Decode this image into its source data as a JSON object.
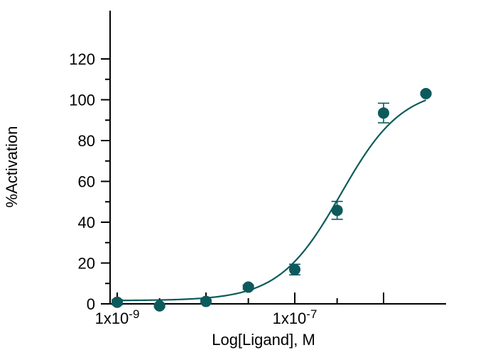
{
  "chart_data": {
    "type": "scatter",
    "xlabel": "Log[Ligand], M",
    "ylabel": "%Activation",
    "x_scale": "log10",
    "xlim": [
      1e-09,
      3e-06
    ],
    "ylim": [
      0,
      120
    ],
    "x_ticks": [
      {
        "value": 1e-09,
        "label": "1x10-9"
      },
      {
        "value": 1e-08,
        "label": ""
      },
      {
        "value": 1e-07,
        "label": "1x10-7"
      },
      {
        "value": 1e-06,
        "label": ""
      }
    ],
    "y_ticks": [
      0,
      20,
      40,
      60,
      80,
      100,
      120
    ],
    "y_minor_ticks": [
      10,
      30,
      50,
      70,
      90,
      110
    ],
    "x_minor_ticks": [
      3e-09,
      3e-08,
      3e-07
    ],
    "grid": false,
    "legend": "none",
    "color": "#0d5a5c",
    "points": [
      {
        "x": 1e-09,
        "y": 0.8,
        "err": 1.2
      },
      {
        "x": 3e-09,
        "y": -1.0,
        "err": 0.5
      },
      {
        "x": 1e-08,
        "y": 1.2,
        "err": 0.8
      },
      {
        "x": 3e-08,
        "y": 8.2,
        "err": 1.0
      },
      {
        "x": 1e-07,
        "y": 16.8,
        "err": 2.6
      },
      {
        "x": 3e-07,
        "y": 45.8,
        "err": 4.4
      },
      {
        "x": 1e-06,
        "y": 93.5,
        "err": 4.8
      },
      {
        "x": 3e-06,
        "y": 103.0,
        "err": 0.5
      }
    ],
    "fit": {
      "model": "sigmoidal dose-response",
      "bottom": 1.6,
      "top": 106,
      "ec50": 3.3e-07,
      "hill": 1.25
    }
  }
}
